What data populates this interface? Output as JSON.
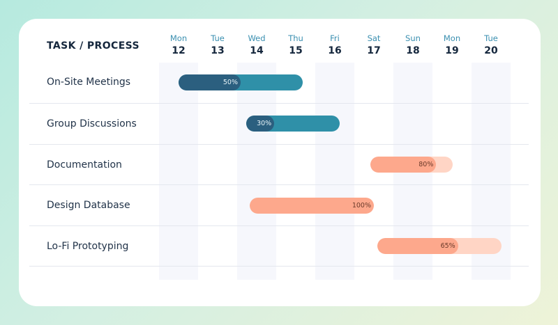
{
  "header": {
    "title": "TASK / PROCESS"
  },
  "days": [
    {
      "name": "Mon",
      "num": "12"
    },
    {
      "name": "Tue",
      "num": "13"
    },
    {
      "name": "Wed",
      "num": "14"
    },
    {
      "name": "Thu",
      "num": "15"
    },
    {
      "name": "Fri",
      "num": "16"
    },
    {
      "name": "Sat",
      "num": "17"
    },
    {
      "name": "Sun",
      "num": "18"
    },
    {
      "name": "Mon",
      "num": "19"
    },
    {
      "name": "Tue",
      "num": "20"
    }
  ],
  "tasks": [
    {
      "label": "On-Site Meetings",
      "progress": 50,
      "progress_label": "50%",
      "color": "#2f90a8"
    },
    {
      "label": "Group Discussions",
      "progress": 30,
      "progress_label": "30%",
      "color": "#2f90a8"
    },
    {
      "label": "Documentation",
      "progress": 80,
      "progress_label": "80%",
      "color": "#fda88c"
    },
    {
      "label": "Design Database",
      "progress": 100,
      "progress_label": "100%",
      "color": "#fda88c"
    },
    {
      "label": "Lo-Fi Prototyping",
      "progress": 65,
      "progress_label": "65%",
      "color": "#fda88c"
    }
  ]
}
